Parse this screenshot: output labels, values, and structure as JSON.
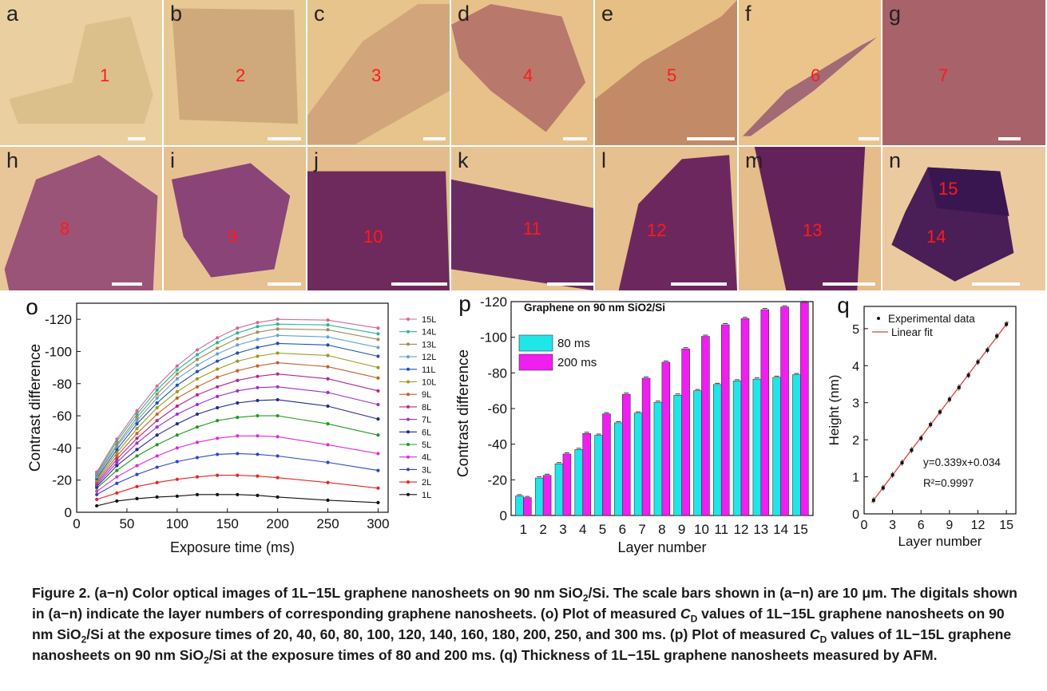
{
  "panels": [
    {
      "letter": "a",
      "number": "1"
    },
    {
      "letter": "b",
      "number": "2"
    },
    {
      "letter": "c",
      "number": "3"
    },
    {
      "letter": "d",
      "number": "4"
    },
    {
      "letter": "e",
      "number": "5"
    },
    {
      "letter": "f",
      "number": "6"
    },
    {
      "letter": "g",
      "number": "7"
    },
    {
      "letter": "h",
      "number": "8"
    },
    {
      "letter": "i",
      "number": "9"
    },
    {
      "letter": "j",
      "number": "10"
    },
    {
      "letter": "k",
      "number": "11"
    },
    {
      "letter": "l",
      "number": "12"
    },
    {
      "letter": "m",
      "number": "13"
    },
    {
      "letter": "n",
      "number": "15",
      "number2": "14"
    }
  ],
  "chart_data": [
    {
      "type": "line",
      "panel_label": "o",
      "xlabel": "Exposure time (ms)",
      "ylabel": "Contrast difference",
      "x": [
        20,
        40,
        60,
        80,
        100,
        120,
        140,
        160,
        180,
        200,
        250,
        300
      ],
      "x_ticks": [
        "0",
        "50",
        "100",
        "150",
        "200",
        "250",
        "300"
      ],
      "y_ticks": [
        "0",
        "-20",
        "-40",
        "-60",
        "-80",
        "-100",
        "-120"
      ],
      "xlim": [
        0,
        310
      ],
      "ylim": [
        0,
        -130
      ],
      "legend_position": "right",
      "series": [
        {
          "name": "1L",
          "color": "#111111",
          "values": [
            -4,
            -7,
            -8.5,
            -9.5,
            -10,
            -11,
            -11,
            -11,
            -10.5,
            -9.5,
            -7.5,
            -6
          ]
        },
        {
          "name": "2L",
          "color": "#e8231f",
          "values": [
            -8,
            -12,
            -16,
            -18.5,
            -20.5,
            -22,
            -23,
            -23,
            -22.5,
            -21.5,
            -18.5,
            -15
          ]
        },
        {
          "name": "3L",
          "color": "#2d43c9",
          "values": [
            -11,
            -18,
            -23.5,
            -28,
            -31.5,
            -34,
            -36,
            -36.5,
            -36,
            -35,
            -31,
            -26
          ]
        },
        {
          "name": "4L",
          "color": "#e02ad6",
          "values": [
            -13,
            -22,
            -29,
            -35,
            -40,
            -43.5,
            -46,
            -47.5,
            -47.5,
            -47,
            -42,
            -36.5
          ]
        },
        {
          "name": "5L",
          "color": "#1f9b1f",
          "values": [
            -15,
            -26,
            -35,
            -42,
            -48,
            -53,
            -57,
            -59,
            -60,
            -60,
            -55,
            -48
          ]
        },
        {
          "name": "6L",
          "color": "#222a8a",
          "values": [
            -16,
            -29,
            -39,
            -48,
            -55,
            -61,
            -65,
            -68,
            -69.5,
            -70,
            -66,
            -58
          ]
        },
        {
          "name": "7L",
          "color": "#9b2fd1",
          "values": [
            -17,
            -31,
            -43,
            -53,
            -61,
            -67,
            -72,
            -75.5,
            -77.5,
            -78,
            -74.5,
            -67
          ]
        },
        {
          "name": "8L",
          "color": "#b0278f",
          "values": [
            -18,
            -33,
            -46,
            -57,
            -66,
            -73,
            -78,
            -82,
            -84.5,
            -86,
            -83,
            -75.5
          ]
        },
        {
          "name": "9L",
          "color": "#c0622a",
          "values": [
            -19,
            -35,
            -49,
            -61,
            -71,
            -78,
            -84,
            -88,
            -91,
            -93,
            -90.5,
            -83.5
          ]
        },
        {
          "name": "10L",
          "color": "#9a9a1a",
          "values": [
            -20,
            -37,
            -52,
            -65,
            -75,
            -83,
            -89,
            -94,
            -97,
            -99,
            -97.5,
            -90
          ]
        },
        {
          "name": "11L",
          "color": "#1e4fb0",
          "values": [
            -21,
            -39,
            -55,
            -68,
            -79,
            -87.5,
            -94,
            -99,
            -102.5,
            -105,
            -104,
            -97
          ]
        },
        {
          "name": "12L",
          "color": "#66a3d2",
          "values": [
            -22,
            -41,
            -57,
            -71,
            -83,
            -91.5,
            -98.5,
            -104,
            -107.5,
            -110,
            -109,
            -102.5
          ]
        },
        {
          "name": "13L",
          "color": "#a28c55",
          "values": [
            -23,
            -42,
            -59,
            -73.5,
            -86,
            -95,
            -102,
            -108,
            -112,
            -114,
            -113.5,
            -107.5
          ]
        },
        {
          "name": "14L",
          "color": "#2bb596",
          "values": [
            -24,
            -44,
            -61,
            -76,
            -88.5,
            -98,
            -105.5,
            -111.5,
            -115.5,
            -117,
            -116.5,
            -111
          ]
        },
        {
          "name": "15L",
          "color": "#d06a9a",
          "values": [
            -25,
            -45.5,
            -63,
            -78.5,
            -91,
            -101,
            -108.5,
            -114.5,
            -118,
            -120,
            -119.5,
            -114.5
          ]
        }
      ]
    },
    {
      "type": "bar",
      "panel_label": "p",
      "title": "Graphene on 90 nm SiO2/Si",
      "xlabel": "Layer number",
      "ylabel": "Contrast difference",
      "categories": [
        "1",
        "2",
        "3",
        "4",
        "5",
        "6",
        "7",
        "8",
        "9",
        "10",
        "11",
        "12",
        "13",
        "14",
        "15"
      ],
      "y_ticks": [
        "0",
        "-20",
        "-40",
        "-60",
        "-80",
        "-100",
        "-120"
      ],
      "ylim": [
        0,
        -120
      ],
      "legend_position": "top-left",
      "series": [
        {
          "name": "80 ms",
          "color": "#1fe6e8",
          "values": [
            -11,
            -21,
            -29,
            -37,
            -45,
            -52,
            -57.5,
            -63.5,
            -67.5,
            -70,
            -73.5,
            -75.5,
            -76.5,
            -77.5,
            -79
          ]
        },
        {
          "name": "200 ms",
          "color": "#f01ef0",
          "values": [
            -10,
            -22.5,
            -34.5,
            -46,
            -57,
            -68,
            -77,
            -86,
            -93.5,
            -100.5,
            -107,
            -110.5,
            -115.5,
            -117,
            -119.5
          ]
        }
      ]
    },
    {
      "type": "scatter",
      "panel_label": "q",
      "xlabel": "Layer number",
      "ylabel": "Height (nm)",
      "x_ticks": [
        "0",
        "3",
        "6",
        "9",
        "12",
        "15"
      ],
      "y_ticks": [
        "0",
        "1",
        "2",
        "3",
        "4",
        "5"
      ],
      "xlim": [
        0,
        16
      ],
      "ylim": [
        0,
        5.6
      ],
      "legend_position": "top",
      "series": [
        {
          "name": "Experimental data",
          "color": "#111111",
          "x": [
            1,
            2,
            3,
            4,
            5,
            6,
            7,
            8,
            9,
            10,
            11,
            12,
            13,
            14,
            15
          ],
          "y": [
            0.37,
            0.7,
            1.05,
            1.38,
            1.72,
            2.04,
            2.41,
            2.75,
            3.09,
            3.41,
            3.74,
            4.1,
            4.42,
            4.8,
            5.12
          ]
        },
        {
          "name": "Linear fit",
          "color": "#e0403a",
          "slope": 0.339,
          "intercept": 0.034
        }
      ],
      "fit_equation": "y=0.339x+0.034",
      "r_squared": "R²=0.9997"
    }
  ],
  "caption": {
    "figure_label": "Figure 2.",
    "part1": " (a−n) Color optical images of 1L−15L graphene nanosheets on 90 nm SiO",
    "sub1": "2",
    "part2": "/Si. The scale bars shown in (a−n) are 10 μm. The digitals shown in (a−n) indicate the layer numbers of corresponding graphene nanosheets. (o) Plot of measured ",
    "cd1": "C",
    "cd1sub": "D",
    "part3": " values of 1L−15L graphene nanosheets on 90 nm SiO",
    "sub2": "2",
    "part4": "/Si at the exposure times of 20, 40, 60, 80, 100, 120, 140, 160, 180, 200, 250, and 300 ms. (p) Plot of measured ",
    "cd2": "C",
    "cd2sub": "D",
    "part5": " values of 1L−15L graphene nanosheets on 90 nm SiO",
    "sub3": "2",
    "part6": "/Si at the exposure times of 80 and 200 ms. (q) Thickness of 1L−15L graphene nanosheets measured by AFM."
  }
}
